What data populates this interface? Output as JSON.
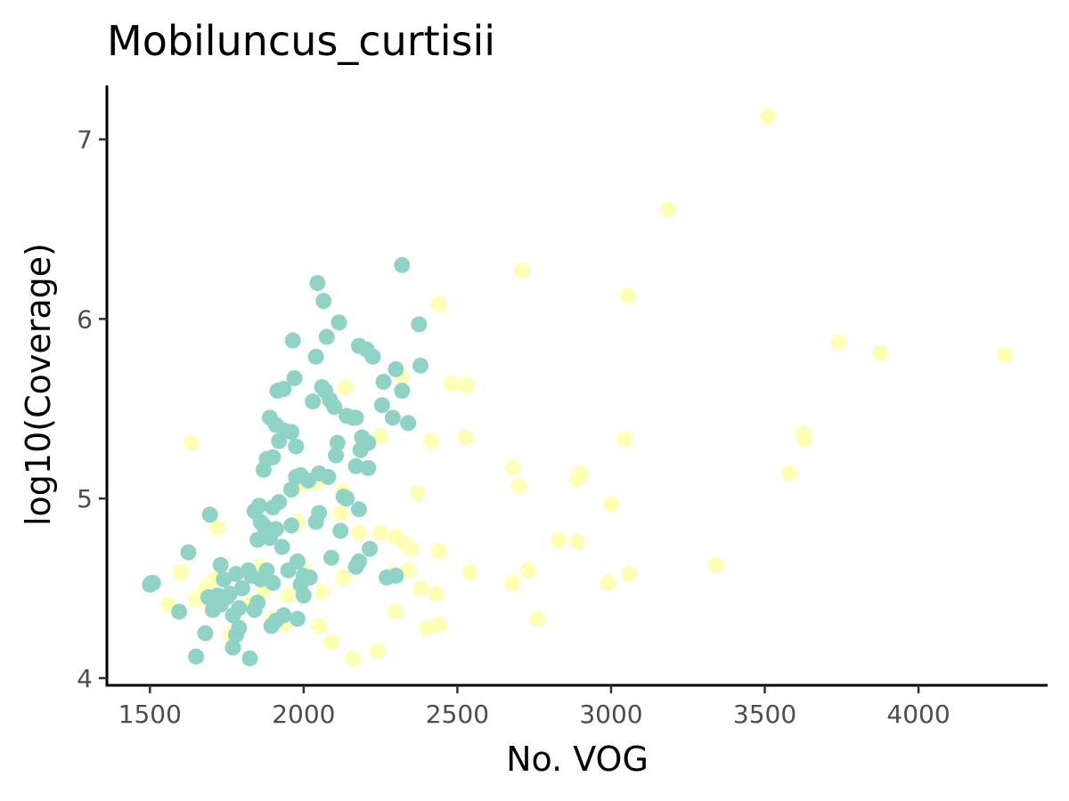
{
  "chart_data": {
    "type": "scatter",
    "title": "Mobiluncus_curtisii",
    "xlabel": "No. VOG",
    "ylabel": "log10(Coverage)",
    "xlim": [
      1360,
      4420
    ],
    "ylim": [
      3.96,
      7.3
    ],
    "xticks": [
      1500,
      2000,
      2500,
      3000,
      3500,
      4000
    ],
    "yticks": [
      4,
      5,
      6,
      7
    ],
    "grid": false,
    "legend": "none",
    "colors": {
      "teal": "#8fd3c7",
      "yellow": "#ffffb3"
    },
    "series": [
      {
        "color": "#ffffb3",
        "x": [
          3510,
          3185,
          2710,
          3055,
          2440,
          3740,
          3875,
          4280,
          2480,
          2530,
          2135,
          2320,
          3625,
          3630,
          3045,
          2415,
          2525,
          1635,
          2250,
          2680,
          2700,
          2890,
          2900,
          3580,
          2000,
          2040,
          2370,
          3000,
          1720,
          2130,
          2250,
          2300,
          2330,
          2350,
          2440,
          2830,
          2890,
          3340,
          1680,
          1710,
          2540,
          2730,
          3060,
          1600,
          1690,
          1870,
          2000,
          2680,
          2990,
          1560,
          1650,
          1700,
          1830,
          2060,
          2380,
          2430,
          2300,
          2760,
          2400,
          2440,
          1900,
          2050,
          2090,
          2160,
          2240,
          1940,
          1760,
          1860,
          1950,
          2130,
          2180,
          2290,
          2340,
          1980,
          2120
        ],
        "y": [
          7.13,
          6.61,
          6.27,
          6.13,
          6.08,
          5.87,
          5.81,
          5.8,
          5.64,
          5.63,
          5.62,
          5.68,
          5.36,
          5.33,
          5.33,
          5.32,
          5.34,
          5.31,
          5.35,
          5.17,
          5.07,
          5.11,
          5.14,
          5.14,
          5.08,
          5.09,
          5.03,
          4.97,
          4.84,
          5.04,
          4.81,
          4.79,
          4.75,
          4.72,
          4.71,
          4.77,
          4.76,
          4.63,
          4.5,
          4.55,
          4.59,
          4.6,
          4.58,
          4.59,
          4.47,
          4.49,
          4.6,
          4.53,
          4.53,
          4.41,
          4.44,
          4.38,
          4.42,
          4.48,
          4.5,
          4.47,
          4.37,
          4.33,
          4.28,
          4.3,
          4.33,
          4.29,
          4.2,
          4.11,
          4.15,
          4.3,
          4.24,
          4.62,
          4.46,
          4.56,
          4.81,
          4.58,
          4.6,
          4.87,
          4.92
        ]
      },
      {
        "color": "#8fd3c7",
        "x": [
          2320,
          2045,
          2065,
          2115,
          2375,
          1965,
          2075,
          2180,
          2205,
          2225,
          2040,
          2380,
          1970,
          2300,
          1915,
          1935,
          2060,
          2070,
          2085,
          2160,
          2255,
          2320,
          2260,
          2030,
          2100,
          1890,
          2140,
          2170,
          2290,
          2340,
          1910,
          1935,
          1960,
          1920,
          2190,
          2210,
          2110,
          1975,
          1880,
          1900,
          2105,
          2185,
          2170,
          2210,
          1870,
          1990,
          2050,
          2080,
          1975,
          2015,
          1960,
          1920,
          1855,
          2130,
          2140,
          2180,
          1695,
          1840,
          1900,
          2050,
          1860,
          2040,
          1960,
          1870,
          1910,
          2120,
          2215,
          1850,
          1930,
          1890,
          1625,
          1980,
          2180,
          2090,
          1730,
          2000,
          2020,
          2170,
          1880,
          1950,
          1990,
          1780,
          1740,
          1830,
          1860,
          1900,
          1500,
          1505,
          1510,
          1800,
          1760,
          1720,
          1750,
          1690,
          2000,
          1850,
          1730,
          1935,
          1705,
          1790,
          1895,
          1840,
          1910,
          1980,
          1595,
          1770,
          1680,
          1780,
          1790,
          1770,
          1650,
          1825,
          2300,
          2270,
          1820
        ],
        "y": [
          6.3,
          6.2,
          6.1,
          5.98,
          5.97,
          5.88,
          5.9,
          5.85,
          5.83,
          5.79,
          5.79,
          5.74,
          5.67,
          5.72,
          5.6,
          5.61,
          5.62,
          5.6,
          5.55,
          5.45,
          5.52,
          5.6,
          5.65,
          5.54,
          5.51,
          5.45,
          5.46,
          5.45,
          5.45,
          5.42,
          5.41,
          5.38,
          5.37,
          5.32,
          5.34,
          5.31,
          5.31,
          5.29,
          5.22,
          5.23,
          5.24,
          5.27,
          5.18,
          5.17,
          5.16,
          5.13,
          5.14,
          5.12,
          5.12,
          5.1,
          5.05,
          4.98,
          4.96,
          5.01,
          5.0,
          4.94,
          4.91,
          4.93,
          4.95,
          4.92,
          4.87,
          4.87,
          4.85,
          4.85,
          4.83,
          4.82,
          4.72,
          4.77,
          4.73,
          4.78,
          4.7,
          4.65,
          4.65,
          4.67,
          4.63,
          4.57,
          4.56,
          4.62,
          4.6,
          4.6,
          4.52,
          4.58,
          4.55,
          4.57,
          4.55,
          4.53,
          4.52,
          4.53,
          4.53,
          4.5,
          4.47,
          4.46,
          4.45,
          4.45,
          4.46,
          4.42,
          4.41,
          4.35,
          4.38,
          4.39,
          4.29,
          4.38,
          4.32,
          4.33,
          4.37,
          4.35,
          4.25,
          4.24,
          4.28,
          4.17,
          4.12,
          4.11,
          4.57,
          4.56,
          4.6
        ]
      }
    ]
  }
}
